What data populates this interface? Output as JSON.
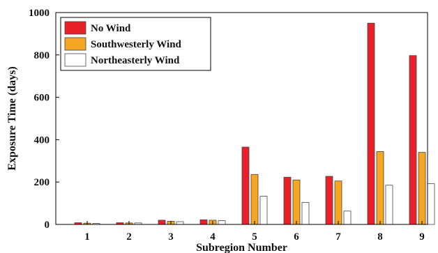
{
  "chart_data": {
    "type": "bar",
    "xlabel": "Subregion Number",
    "ylabel": "Exposure Time (days)",
    "categories": [
      "1",
      "2",
      "3",
      "4",
      "5",
      "6",
      "7",
      "8",
      "9"
    ],
    "ylim": [
      0,
      1000
    ],
    "yticks": [
      "0",
      "200",
      "400",
      "600",
      "800",
      "1000"
    ],
    "grid": false,
    "legend_position": "top-left",
    "series": [
      {
        "name": "No Wind",
        "color": "#e8202a",
        "values": [
          8,
          8,
          20,
          22,
          365,
          223,
          227,
          950,
          797
        ]
      },
      {
        "name": "Southwesterly Wind",
        "color": "#f5a623",
        "values": [
          6,
          7,
          15,
          20,
          236,
          210,
          205,
          344,
          340
        ]
      },
      {
        "name": "Northeasterly Wind",
        "color": "#ffffff",
        "values": [
          5,
          7,
          13,
          18,
          133,
          104,
          63,
          185,
          192
        ]
      }
    ]
  }
}
